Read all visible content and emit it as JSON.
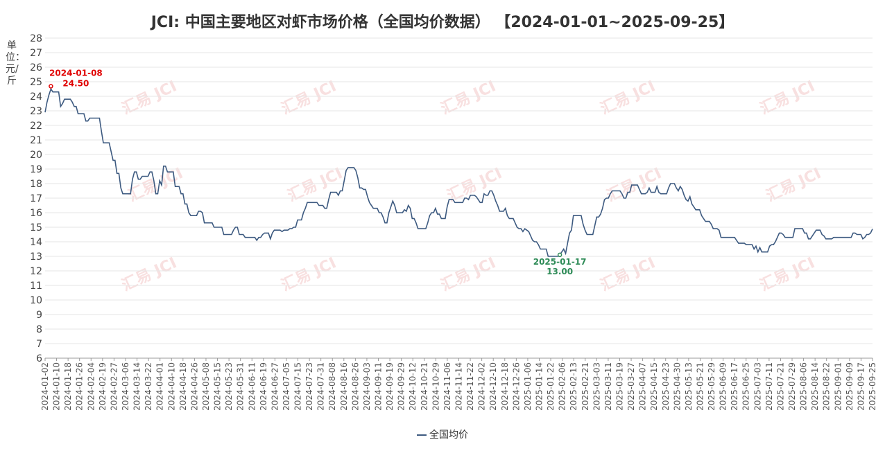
{
  "title": "JCI: 中国主要地区对虾市场价格（全国均价数据） 【2024-01-01~2025-09-25】",
  "ylabel": "单位：元/斤",
  "watermark": "汇易 JCI",
  "legend": {
    "label": "全国均价"
  },
  "colors": {
    "series": "#3d5a80",
    "max": "#e00000",
    "min": "#2e8b57",
    "last": "#111111"
  },
  "chart_data": {
    "type": "line",
    "ylim": [
      6,
      28
    ],
    "grid": true,
    "legend_position": "bottom",
    "x_tick_labels": [
      "2024-01-02",
      "2024-01-10",
      "2024-01-18",
      "2024-01-26",
      "2024-02-04",
      "2024-02-19",
      "2024-02-27",
      "2024-03-06",
      "2024-03-14",
      "2024-03-22",
      "2024-04-01",
      "2024-04-10",
      "2024-04-18",
      "2024-04-26",
      "2024-05-08",
      "2024-05-15",
      "2024-05-23",
      "2024-05-31",
      "2024-06-11",
      "2024-06-19",
      "2024-06-27",
      "2024-07-05",
      "2024-07-15",
      "2024-07-23",
      "2024-07-31",
      "2024-08-08",
      "2024-08-16",
      "2024-08-26",
      "2024-09-03",
      "2024-09-11",
      "2024-09-19",
      "2024-09-29",
      "2024-10-12",
      "2024-10-21",
      "2024-10-29",
      "2024-11-06",
      "2024-11-14",
      "2024-11-22",
      "2024-12-02",
      "2024-12-10",
      "2024-12-18",
      "2024-12-26",
      "2025-01-06",
      "2025-01-14",
      "2025-01-22",
      "2025-02-06",
      "2025-02-13",
      "2025-02-21",
      "2025-03-03",
      "2025-03-11",
      "2025-03-19",
      "2025-03-27",
      "2025-04-07",
      "2025-04-15",
      "2025-04-23",
      "2025-04-30",
      "2025-05-13",
      "2025-05-21",
      "2025-05-29",
      "2025-06-09",
      "2025-06-17",
      "2025-06-25",
      "2025-07-03",
      "2025-07-11",
      "2025-07-21",
      "2025-07-29",
      "2025-08-06",
      "2025-08-14",
      "2025-08-22",
      "2025-09-01",
      "2025-09-09",
      "2025-09-17",
      "2025-09-25"
    ],
    "series": [
      {
        "name": "全国均价",
        "values": [
          22.9,
          23.6,
          24.1,
          24.5,
          24.3,
          24.3,
          24.3,
          24.3,
          23.3,
          23.5,
          23.8,
          23.8,
          23.8,
          23.8,
          23.6,
          23.3,
          23.3,
          22.8,
          22.8,
          22.8,
          22.8,
          22.3,
          22.3,
          22.5,
          22.5,
          22.5,
          22.5,
          22.5,
          22.5,
          21.6,
          20.8,
          20.8,
          20.8,
          20.8,
          20.2,
          19.6,
          19.6,
          18.7,
          18.7,
          17.7,
          17.3,
          17.3,
          17.3,
          17.3,
          17.3,
          18.3,
          18.8,
          18.8,
          18.3,
          18.3,
          18.5,
          18.5,
          18.5,
          18.5,
          18.8,
          18.8,
          18.2,
          17.3,
          17.3,
          18.2,
          17.9,
          19.2,
          19.2,
          18.8,
          18.8,
          18.8,
          18.8,
          17.8,
          17.8,
          17.8,
          17.3,
          17.3,
          16.6,
          16.6,
          16.0,
          15.8,
          15.8,
          15.8,
          15.8,
          16.1,
          16.1,
          16.0,
          15.3,
          15.3,
          15.3,
          15.3,
          15.3,
          15.0,
          15.0,
          15.0,
          15.0,
          15.0,
          14.5,
          14.5,
          14.5,
          14.5,
          14.5,
          14.8,
          15.0,
          15.0,
          14.5,
          14.5,
          14.5,
          14.3,
          14.3,
          14.3,
          14.3,
          14.3,
          14.3,
          14.1,
          14.3,
          14.3,
          14.5,
          14.6,
          14.6,
          14.6,
          14.2,
          14.6,
          14.8,
          14.8,
          14.8,
          14.8,
          14.7,
          14.8,
          14.8,
          14.8,
          14.9,
          14.9,
          15.0,
          15.0,
          15.5,
          15.5,
          15.5,
          16.0,
          16.3,
          16.7,
          16.7,
          16.7,
          16.7,
          16.7,
          16.7,
          16.5,
          16.5,
          16.5,
          16.3,
          16.3,
          16.9,
          17.4,
          17.4,
          17.4,
          17.4,
          17.2,
          17.5,
          17.5,
          18.2,
          18.9,
          19.1,
          19.1,
          19.1,
          19.1,
          18.9,
          18.4,
          17.7,
          17.7,
          17.6,
          17.6,
          17.1,
          16.7,
          16.5,
          16.3,
          16.3,
          16.3,
          16.0,
          16.0,
          15.7,
          15.3,
          15.3,
          16.0,
          16.4,
          16.8,
          16.5,
          16.0,
          16.0,
          16.0,
          16.0,
          16.2,
          16.1,
          16.5,
          16.3,
          15.6,
          15.6,
          15.3,
          14.9,
          14.9,
          14.9,
          14.9,
          14.9,
          15.3,
          15.8,
          16.0,
          16.0,
          16.3,
          15.9,
          15.9,
          15.6,
          15.6,
          15.6,
          16.4,
          16.9,
          16.9,
          16.9,
          16.7,
          16.7,
          16.7,
          16.7,
          16.7,
          17.0,
          17.0,
          16.9,
          17.2,
          17.2,
          17.2,
          17.1,
          16.9,
          16.7,
          16.7,
          17.3,
          17.2,
          17.2,
          17.5,
          17.5,
          17.2,
          16.8,
          16.5,
          16.1,
          16.1,
          16.1,
          16.3,
          15.8,
          15.6,
          15.6,
          15.6,
          15.3,
          15.0,
          14.9,
          14.9,
          14.7,
          14.9,
          14.8,
          14.7,
          14.4,
          14.1,
          14.0,
          14.0,
          13.8,
          13.5,
          13.5,
          13.5,
          13.5,
          13.0,
          13.0,
          13.0,
          13.0,
          13.0,
          13.0,
          13.1,
          13.3,
          13.5,
          13.2,
          13.9,
          14.6,
          14.8,
          15.8,
          15.8,
          15.8,
          15.8,
          15.8,
          15.2,
          14.8,
          14.5,
          14.5,
          14.5,
          14.5,
          15.1,
          15.7,
          15.7,
          15.9,
          16.3,
          16.9,
          17.0,
          17.0,
          17.3,
          17.5,
          17.5,
          17.5,
          17.5,
          17.5,
          17.3,
          17.0,
          17.0,
          17.4,
          17.4,
          17.9,
          17.9,
          17.9,
          17.9,
          17.6,
          17.3,
          17.3,
          17.3,
          17.4,
          17.7,
          17.4,
          17.4,
          17.4,
          17.8,
          17.4,
          17.3,
          17.3,
          17.3,
          17.3,
          17.7,
          18.0,
          18.0,
          18.0,
          17.7,
          17.5,
          17.8,
          17.6,
          17.2,
          16.9,
          16.8,
          17.1,
          16.6,
          16.4,
          16.2,
          16.2,
          16.2,
          15.8,
          15.6,
          15.4,
          15.4,
          15.4,
          15.2,
          14.9,
          14.9,
          14.9,
          14.8,
          14.3,
          14.3,
          14.3,
          14.3,
          14.3,
          14.3,
          14.3,
          14.3,
          14.1,
          13.9,
          13.9,
          13.9,
          13.9,
          13.8,
          13.8,
          13.8,
          13.8,
          13.5,
          13.7,
          13.3,
          13.6,
          13.3,
          13.3,
          13.3,
          13.3,
          13.7,
          13.8,
          13.8,
          14.0,
          14.3,
          14.6,
          14.6,
          14.5,
          14.3,
          14.3,
          14.3,
          14.3,
          14.3,
          14.9,
          14.9,
          14.9,
          14.9,
          14.9,
          14.6,
          14.6,
          14.2,
          14.2,
          14.4,
          14.6,
          14.8,
          14.8,
          14.8,
          14.5,
          14.4,
          14.2,
          14.2,
          14.2,
          14.2,
          14.3,
          14.3,
          14.3,
          14.3,
          14.3,
          14.3,
          14.3,
          14.3,
          14.3,
          14.3,
          14.6,
          14.6,
          14.5,
          14.5,
          14.5,
          14.2,
          14.3,
          14.5,
          14.5,
          14.6,
          14.88
        ]
      }
    ],
    "annotations": [
      {
        "type": "max",
        "date": "2024-01-08",
        "value": "24.50",
        "index": 3
      },
      {
        "type": "min",
        "date": "2025-01-17",
        "value": "13.00",
        "index": 265
      },
      {
        "type": "last",
        "date": "2025-09-25",
        "value": "14.88",
        "index": 437
      }
    ]
  }
}
